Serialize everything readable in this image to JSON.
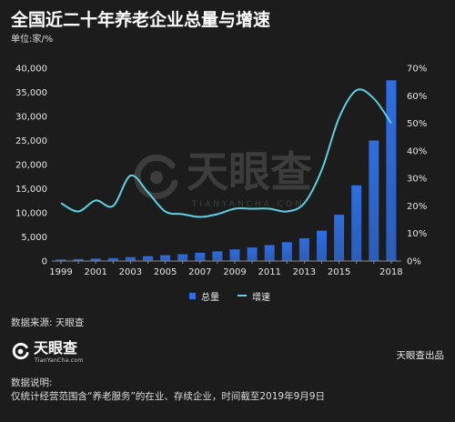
{
  "chart_data": {
    "type": "bar",
    "title": "全国近二十年养老企业总量与增速",
    "subtitle": "单位:家/%",
    "categories": [
      "1999",
      "2000",
      "2001",
      "2002",
      "2003",
      "2004",
      "2005",
      "2006",
      "2007",
      "2008",
      "2009",
      "2010",
      "2011",
      "2012",
      "2013",
      "2014",
      "2015",
      "2016",
      "2017",
      "2018"
    ],
    "series": [
      {
        "name": "总量",
        "type": "bar",
        "axis": "left",
        "color": "#2f6de0",
        "values": [
          300,
          400,
          500,
          600,
          800,
          1000,
          1200,
          1400,
          1700,
          2000,
          2400,
          2800,
          3300,
          3900,
          4700,
          6300,
          9600,
          15700,
          25000,
          37500
        ]
      },
      {
        "name": "增速",
        "type": "line",
        "axis": "right",
        "color": "#5cd0e4",
        "values": [
          21,
          18,
          22,
          20,
          31,
          25,
          18,
          17,
          16,
          17,
          19,
          19,
          19,
          18,
          21,
          33,
          52,
          62,
          59,
          50
        ]
      }
    ],
    "x_tick_labels": [
      "1999",
      "2001",
      "2003",
      "2005",
      "2007",
      "2009",
      "2011",
      "2013",
      "2015",
      "2018"
    ],
    "y_left": {
      "range": [
        0,
        40000
      ],
      "ticks": [
        0,
        5000,
        10000,
        15000,
        20000,
        25000,
        30000,
        35000,
        40000
      ],
      "tick_labels": [
        "0",
        "5,000",
        "10,000",
        "15,000",
        "20,000",
        "25,000",
        "30,000",
        "35,000",
        "40,000"
      ]
    },
    "y_right": {
      "range": [
        0,
        70
      ],
      "ticks": [
        0,
        10,
        20,
        30,
        40,
        50,
        60,
        70
      ],
      "tick_labels": [
        "0%",
        "10%",
        "20%",
        "30%",
        "40%",
        "50%",
        "60%",
        "70%"
      ]
    },
    "grid": false,
    "legend": "bottom-center"
  },
  "watermark": {
    "name": "天眼查",
    "domain": "TIANYANCHA.COM"
  },
  "footer": {
    "source": "数据来源: 天眼查",
    "logo_name": "天眼查",
    "logo_domain": "TianYanCha.com",
    "producer": "天眼查出品",
    "note_title": "数据说明:",
    "note_text": "仅统计经营范围含“养老服务”的在业、存续企业，时间截至2019年9月9日"
  },
  "colors": {
    "background": "#1c1c1c",
    "bar": "#2f6de0",
    "line": "#5cd0e4",
    "text": "#e6e6e6"
  },
  "icons": {
    "brand_logo": "tianyancha-logo-icon"
  }
}
